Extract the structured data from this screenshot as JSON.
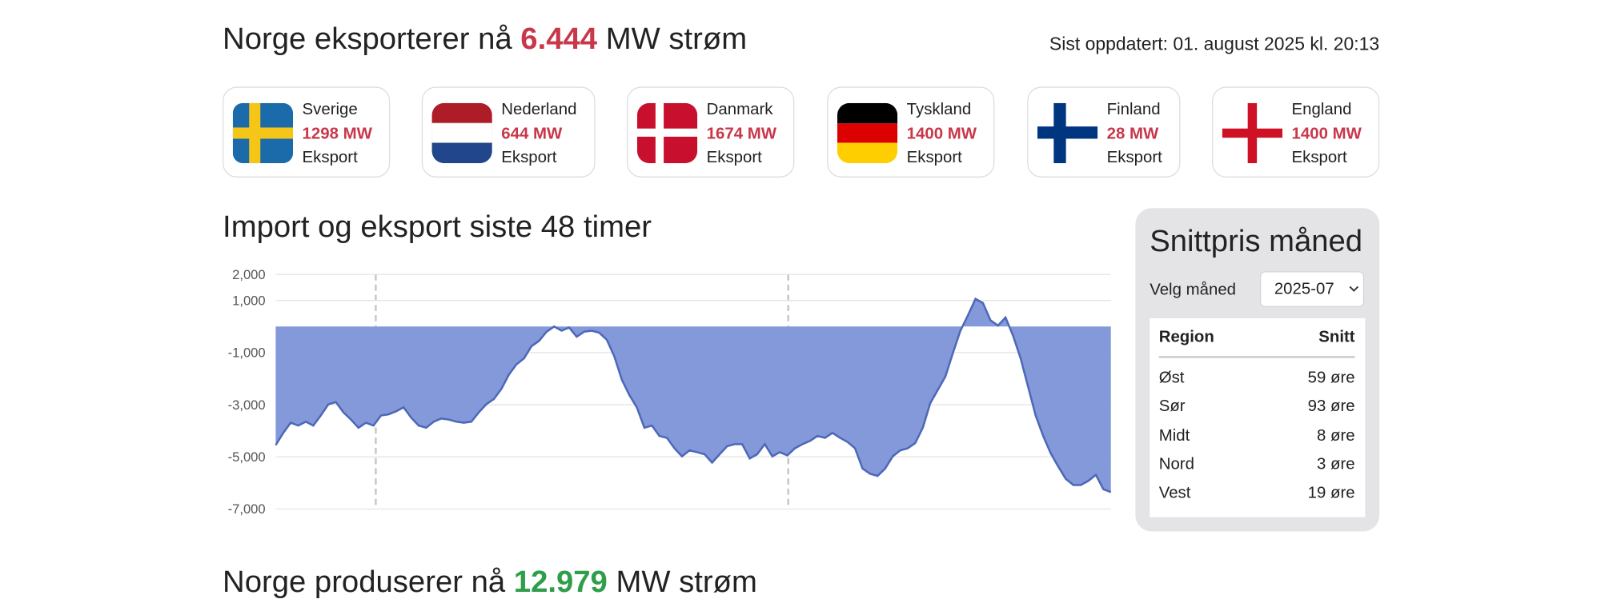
{
  "header": {
    "title_prefix": "Norge eksporterer nå",
    "title_value": "6.444",
    "title_suffix": "MW strøm",
    "updated": "Sist oppdatert: 01. august 2025 kl. 20:13"
  },
  "countries": [
    {
      "name": "Sverige",
      "value": "1298 MW",
      "label": "Eksport"
    },
    {
      "name": "Nederland",
      "value": "644 MW",
      "label": "Eksport"
    },
    {
      "name": "Danmark",
      "value": "1674 MW",
      "label": "Eksport"
    },
    {
      "name": "Tyskland",
      "value": "1400 MW",
      "label": "Eksport"
    },
    {
      "name": "Finland",
      "value": "28 MW",
      "label": "Eksport"
    },
    {
      "name": "England",
      "value": "1400 MW",
      "label": "Eksport"
    }
  ],
  "chart_data": {
    "type": "area",
    "title": "Import og eksport siste 48 timer",
    "series": [
      {
        "color": "#8499da",
        "values": [
          -4550,
          -4080,
          -3690,
          -3800,
          -3650,
          -3800,
          -3410,
          -2980,
          -2900,
          -3290,
          -3570,
          -3880,
          -3690,
          -3800,
          -3410,
          -3370,
          -3250,
          -3100,
          -3490,
          -3800,
          -3880,
          -3650,
          -3530,
          -3570,
          -3650,
          -3690,
          -3650,
          -3290,
          -2980,
          -2780,
          -2390,
          -1840,
          -1450,
          -1220,
          -750,
          -550,
          -200,
          0,
          -160,
          -40,
          -390,
          -200,
          -160,
          -240,
          -510,
          -1140,
          -2040,
          -2630,
          -3100,
          -3880,
          -3800,
          -4200,
          -4270,
          -4670,
          -4980,
          -4750,
          -4820,
          -4900,
          -5220,
          -4900,
          -4590,
          -4510,
          -4510,
          -5060,
          -4900,
          -4510,
          -4980,
          -4820,
          -4940,
          -4670,
          -4510,
          -4390,
          -4200,
          -4270,
          -4080,
          -4270,
          -4430,
          -4670,
          -5450,
          -5650,
          -5730,
          -5450,
          -4980,
          -4750,
          -4670,
          -4470,
          -3880,
          -2940,
          -2430,
          -1920,
          -1020,
          -160,
          430,
          1060,
          900,
          240,
          40,
          350,
          -350,
          -1220,
          -2310,
          -3410,
          -4200,
          -4860,
          -5370,
          -5840,
          -6080,
          -6080,
          -5920,
          -5690,
          -6240,
          -6350
        ]
      }
    ],
    "ylim": [
      -7000,
      2000
    ],
    "yticks": [
      {
        "value": 2000,
        "label": "2,000"
      },
      {
        "value": 1000,
        "label": "1,000"
      },
      {
        "value": -1000,
        "label": "-1,000"
      },
      {
        "value": -3000,
        "label": "-3,000"
      },
      {
        "value": -5000,
        "label": "-5,000"
      },
      {
        "value": -7000,
        "label": "-7,000"
      }
    ],
    "grid": true
  },
  "price_panel": {
    "title": "Snittpris måned",
    "select_label": "Velg måned",
    "selected": "2025-07",
    "table": {
      "header": [
        "Region",
        "Snitt"
      ],
      "rows": [
        [
          "Øst",
          "59 øre"
        ],
        [
          "Sør",
          "93 øre"
        ],
        [
          "Midt",
          "8 øre"
        ],
        [
          "Nord",
          "3 øre"
        ],
        [
          "Vest",
          "19 øre"
        ]
      ]
    }
  },
  "footer": {
    "title_prefix": "Norge produserer nå",
    "title_value": "12.979",
    "title_suffix": "MW strøm"
  }
}
